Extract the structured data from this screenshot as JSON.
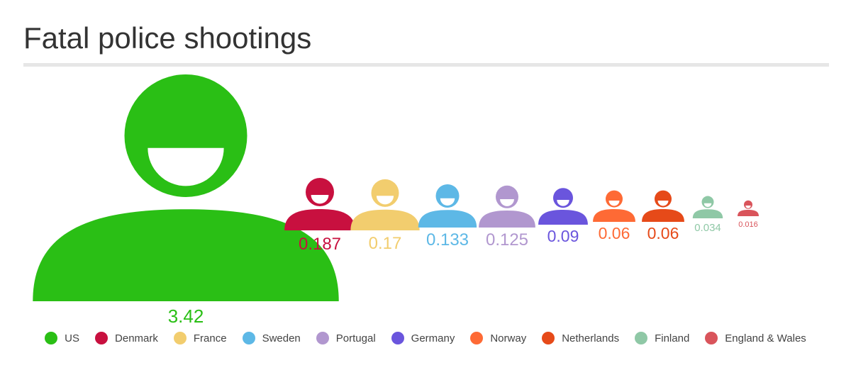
{
  "title": "Fatal police shootings",
  "chart_data": {
    "type": "pictograph",
    "title": "Fatal police shootings",
    "legend_position": "bottom",
    "series": [
      {
        "name": "US",
        "value": 3.42,
        "label": "3.42",
        "color": "#2abf15"
      },
      {
        "name": "Denmark",
        "value": 0.187,
        "label": "0.187",
        "color": "#c8103f"
      },
      {
        "name": "France",
        "value": 0.17,
        "label": "0.17",
        "color": "#f2cd6e"
      },
      {
        "name": "Sweden",
        "value": 0.133,
        "label": "0.133",
        "color": "#5db8e6"
      },
      {
        "name": "Portugal",
        "value": 0.125,
        "label": "0.125",
        "color": "#b197cf"
      },
      {
        "name": "Germany",
        "value": 0.09,
        "label": "0.09",
        "color": "#6a55dd"
      },
      {
        "name": "Norway",
        "value": 0.06,
        "label": "0.06",
        "color": "#fe6a35"
      },
      {
        "name": "Netherlands",
        "value": 0.06,
        "label": "0.06",
        "color": "#e64a19"
      },
      {
        "name": "Finland",
        "value": 0.034,
        "label": "0.034",
        "color": "#8fc8a6"
      },
      {
        "name": "England & Wales",
        "value": 0.016,
        "label": "0.016",
        "color": "#d9545b"
      }
    ]
  }
}
